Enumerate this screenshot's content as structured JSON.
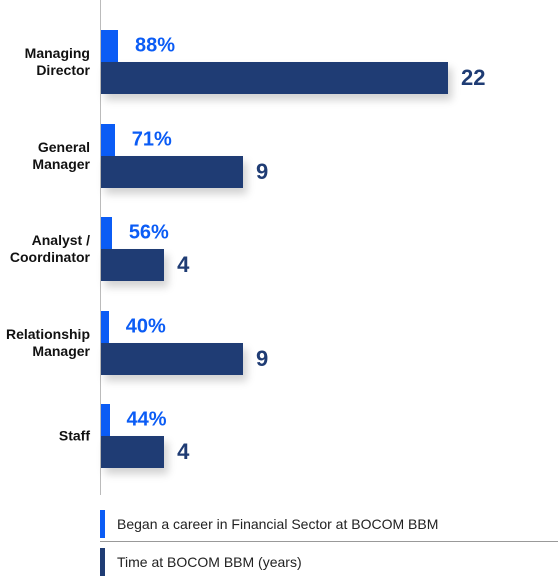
{
  "chart_data": {
    "type": "bar",
    "orientation": "horizontal",
    "categories": [
      "Managing Director",
      "General Manager",
      "Analyst / Coordinator",
      "Relationship Manager",
      "Staff"
    ],
    "series": [
      {
        "name": "Began a career in Financial Sector at BOCOM BBM",
        "color": "#0b5cf5",
        "values": [
          88,
          71,
          56,
          40,
          44
        ],
        "value_labels": [
          "88%",
          "71%",
          "56%",
          "40%",
          "44%"
        ]
      },
      {
        "name": "Time at BOCOM BBM (years)",
        "color": "#1f3c74",
        "values": [
          22,
          9,
          4,
          9,
          4
        ]
      }
    ],
    "legend": "bottom"
  }
}
